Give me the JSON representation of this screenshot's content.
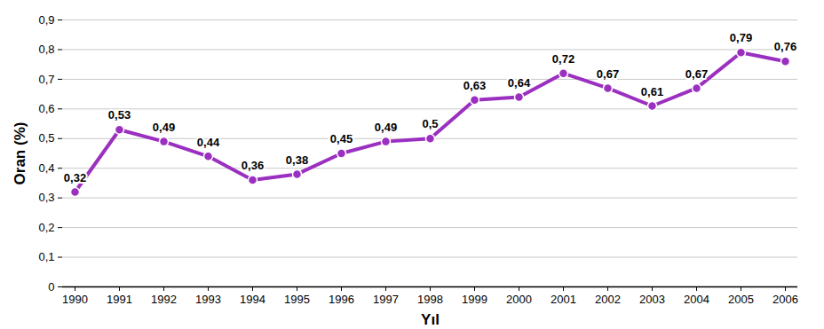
{
  "chart_data": {
    "type": "line",
    "x_label": "Yıl",
    "y_label": "Oran (%)",
    "categories": [
      "1990",
      "1991",
      "1992",
      "1993",
      "1994",
      "1995",
      "1996",
      "1997",
      "1998",
      "1999",
      "2000",
      "2001",
      "2002",
      "2003",
      "2004",
      "2005",
      "2006"
    ],
    "values": [
      0.32,
      0.53,
      0.49,
      0.44,
      0.36,
      0.38,
      0.45,
      0.49,
      0.5,
      0.63,
      0.64,
      0.72,
      0.67,
      0.61,
      0.67,
      0.79,
      0.76
    ],
    "value_labels": [
      "0,32",
      "0,53",
      "0,49",
      "0,44",
      "0,36",
      "0,38",
      "0,45",
      "0,49",
      "0,5",
      "0,63",
      "0,64",
      "0,72",
      "0,67",
      "0,61",
      "0,67",
      "0,79",
      "0,76"
    ],
    "color": "#9b30c0",
    "marker": "circle",
    "line_style": "solid",
    "data_labels": true,
    "grid": true,
    "ylim": [
      0,
      0.9
    ],
    "yticks": [
      0,
      {
        "value": 0.1,
        "label": "0,1"
      },
      {
        "value": 0.2,
        "label": "0,2"
      },
      {
        "value": 0.3,
        "label": "0,3"
      },
      {
        "value": 0.4,
        "label": "0,4"
      },
      {
        "value": 0.5,
        "label": "0,5"
      },
      {
        "value": 0.6,
        "label": "0,6"
      },
      {
        "value": 0.7,
        "label": "0,7"
      },
      {
        "value": 0.8,
        "label": "0,8"
      },
      {
        "value": 0.9,
        "label": "0,9"
      }
    ]
  }
}
